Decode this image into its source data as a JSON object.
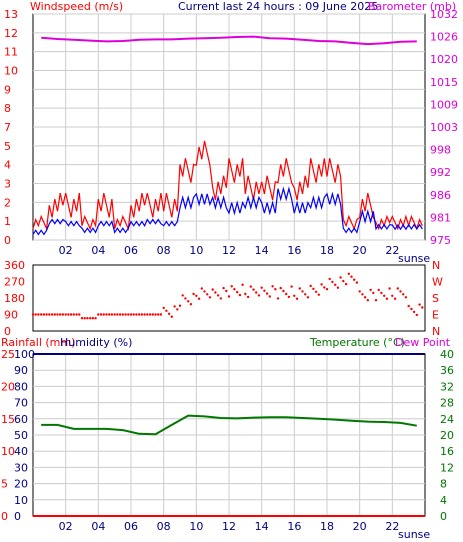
{
  "header": {
    "windspeed_label": "Windspeed (m/s)",
    "current_label": "Current last 24 hours : 09 June 2025",
    "barometer_label": "Barometer (mb)"
  },
  "labels": {
    "sunset_1": "sunse",
    "sunset_2": "sunse",
    "rainfall_label": "Rainfall (mm)",
    "humidity_label": "Humidity (%)",
    "temperature_label": "Temperature (°C)",
    "dewpoint_label": "Dew Point"
  },
  "colors": {
    "wind_gust": "#ff0000",
    "wind_avg": "#0000ff",
    "barometer": "#dd00dd",
    "direction": "#ff0000",
    "humidity": "#000080",
    "temperature": "#007700",
    "rainfall": "#ff0000",
    "grid": "#cccccc"
  },
  "chart_data": [
    {
      "type": "line",
      "name": "wind-baro",
      "x_ticks": [
        "02",
        "04",
        "06",
        "08",
        "10",
        "12",
        "14",
        "16",
        "18",
        "20",
        "22"
      ],
      "x_range_hours": [
        0,
        24
      ],
      "left_axis": {
        "label": "Windspeed (m/s)",
        "ticks": [
          "0",
          "1",
          "2",
          "3",
          "4",
          "5",
          "7",
          "8",
          "9",
          "10",
          "11",
          "12",
          "13"
        ],
        "ylim": [
          0,
          13
        ]
      },
      "right_axis": {
        "label": "Barometer (mb)",
        "ticks": [
          "975",
          "981",
          "986",
          "992",
          "998",
          "1003",
          "1009",
          "1015",
          "1020",
          "1026",
          "1032"
        ]
      },
      "gust_hourly": [
        1,
        2,
        2,
        1,
        2,
        1,
        2,
        2,
        2,
        4,
        5,
        3,
        4,
        3,
        3,
        4,
        3,
        4,
        4,
        1,
        2,
        1,
        1,
        1
      ],
      "avg_hourly": [
        0.5,
        1,
        1,
        0.5,
        1,
        0.5,
        1,
        1,
        1,
        2,
        2.5,
        2,
        2,
        2,
        2,
        2.5,
        2,
        2,
        2.5,
        0.5,
        1.5,
        0.7,
        0.8,
        0.7
      ],
      "barometer_hourly": [
        1026,
        1025.7,
        1025.5,
        1025.3,
        1025.1,
        1025.2,
        1025.5,
        1025.6,
        1025.6,
        1025.8,
        1025.9,
        1026,
        1026.2,
        1026.3,
        1025.9,
        1025.8,
        1025.5,
        1025.2,
        1025.1,
        1024.7,
        1024.4,
        1024.6,
        1025,
        1025.1
      ]
    },
    {
      "type": "scatter",
      "name": "wind-direction",
      "left_axis": {
        "ticks": [
          "0",
          "90",
          "180",
          "270",
          "360"
        ],
        "ylim": [
          0,
          360
        ]
      },
      "right_axis": {
        "ticks": [
          "N",
          "E",
          "S",
          "W",
          "N"
        ]
      },
      "direction_hourly": [
        90,
        90,
        90,
        70,
        90,
        90,
        90,
        90,
        110,
        170,
        200,
        210,
        220,
        210,
        220,
        210,
        200,
        230,
        260,
        280,
        200,
        200,
        200,
        120
      ]
    },
    {
      "type": "line",
      "name": "humidity-temp",
      "x_ticks": [
        "02",
        "04",
        "06",
        "08",
        "10",
        "12",
        "14",
        "16",
        "18",
        "20",
        "22"
      ],
      "left_axis_rain": {
        "label": "Rainfall (mm)",
        "ticks": [
          "0",
          "5",
          "10",
          "15",
          "20",
          "25"
        ]
      },
      "left_axis_humidity": {
        "label": "Humidity (%)",
        "ticks": [
          "0",
          "10",
          "20",
          "30",
          "40",
          "50",
          "60",
          "70",
          "80",
          "90",
          "100"
        ],
        "ylim": [
          0,
          100
        ]
      },
      "right_axis": {
        "label": "Temperature (°C)",
        "ticks": [
          "0",
          "4",
          "8",
          "12",
          "16",
          "20",
          "24",
          "28",
          "32",
          "36",
          "40"
        ],
        "ylim": [
          0,
          40
        ]
      },
      "humidity_hourly": [
        100,
        100,
        100,
        100,
        100,
        100,
        100,
        100,
        100,
        100,
        100,
        100,
        100,
        100,
        100,
        100,
        100,
        100,
        100,
        100,
        100,
        100,
        100,
        100
      ],
      "temperature_hourly": [
        22.5,
        22.5,
        21.5,
        21.5,
        21.5,
        21.2,
        20.3,
        20.2,
        22.5,
        24.8,
        24.6,
        24.2,
        24.1,
        24.3,
        24.4,
        24.4,
        24.2,
        24.0,
        23.8,
        23.5,
        23.3,
        23.2,
        23.0,
        22.3
      ],
      "rainfall_hourly": [
        0,
        0,
        0,
        0,
        0,
        0,
        0,
        0,
        0,
        0,
        0,
        0,
        0,
        0,
        0,
        0,
        0,
        0,
        0,
        0,
        0,
        0,
        0,
        0
      ]
    }
  ]
}
